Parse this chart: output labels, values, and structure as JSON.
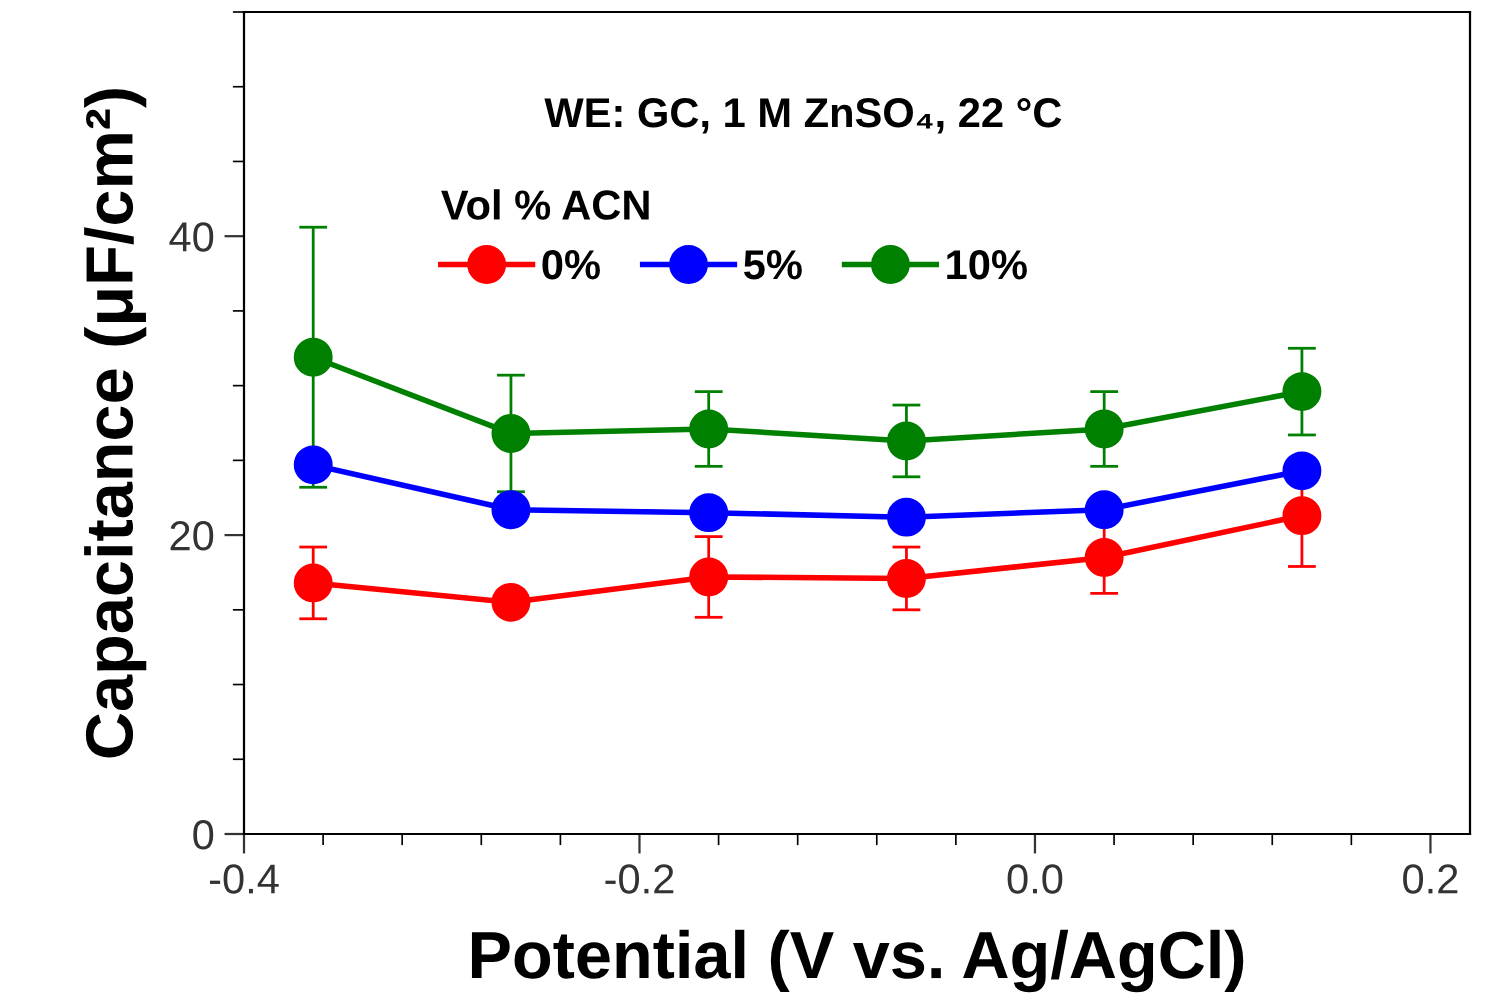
{
  "chart_data": {
    "type": "line",
    "xlabel": "Potential (V vs. Ag/AgCl)",
    "ylabel": "Capacitance (μF/cm²)",
    "annotations": [
      "WE: GC, 1 M ZnSO₄, 22 °C"
    ],
    "legend_title": "Vol % ACN",
    "legend": "top",
    "x": [
      -0.365,
      -0.265,
      -0.165,
      -0.065,
      0.035,
      0.135
    ],
    "series": [
      {
        "name": "0%",
        "color": "#ff0000",
        "values": [
          16.8,
          15.5,
          17.2,
          17.1,
          18.5,
          21.3
        ],
        "errors": [
          2.4,
          null,
          2.7,
          2.1,
          2.4,
          3.4
        ]
      },
      {
        "name": "5%",
        "color": "#0000ff",
        "values": [
          24.7,
          21.7,
          21.5,
          21.2,
          21.7,
          24.3
        ]
      },
      {
        "name": "10%",
        "color": "#008000",
        "values": [
          31.9,
          26.8,
          27.1,
          26.3,
          27.1,
          29.6
        ],
        "errors": [
          8.7,
          3.9,
          2.5,
          2.4,
          2.5,
          2.9
        ]
      }
    ],
    "marker": "circle",
    "line_style": "solid",
    "grid": false,
    "xlim": [
      -0.4,
      0.22
    ],
    "xticks": [
      {
        "value": -0.4,
        "label": "-0.4"
      },
      {
        "value": -0.2,
        "label": "-0.2"
      },
      {
        "value": 0.0,
        "label": "0.0"
      },
      {
        "value": 0.2,
        "label": "0.2"
      }
    ],
    "ylim": [
      0,
      55
    ],
    "yticks": [
      0,
      20,
      40
    ]
  }
}
